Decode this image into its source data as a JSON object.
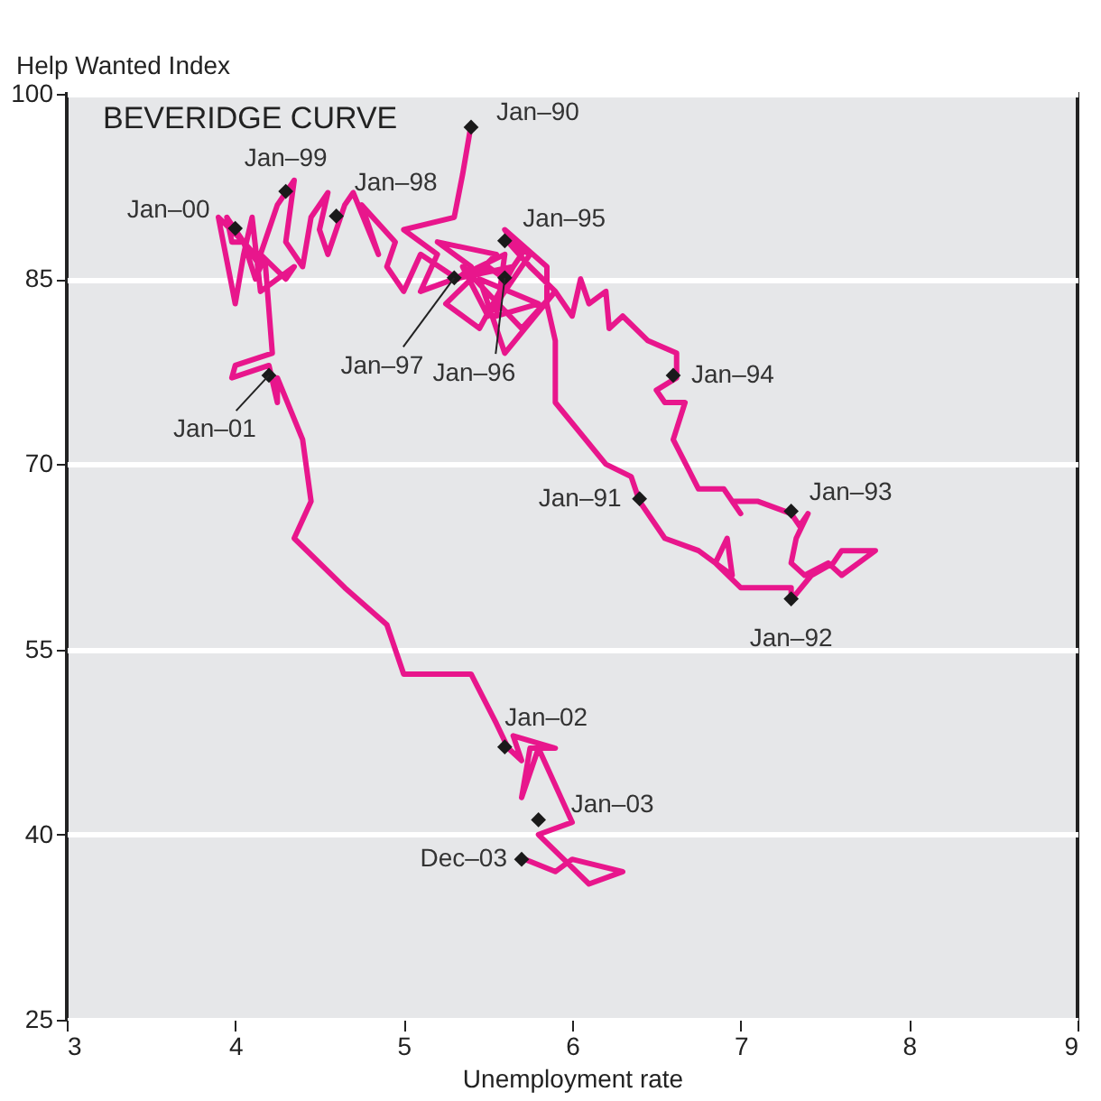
{
  "chart_data": {
    "type": "line",
    "title": "BEVERIDGE CURVE",
    "ylabel": "Help Wanted Index",
    "xlabel": "Unemployment rate",
    "xlim": [
      3,
      9
    ],
    "xticks": [
      3,
      4,
      5,
      6,
      7,
      8,
      9
    ],
    "ylim": [
      25,
      100
    ],
    "yticks": [
      25,
      40,
      55,
      70,
      85,
      100
    ],
    "grid": "y",
    "legend": false,
    "series": [
      {
        "type": "line",
        "color": "#e8168c",
        "marker": "none",
        "x": [
          5.4,
          5.35,
          5.3,
          5.0,
          5.2,
          5.1,
          5.5,
          5.6,
          5.7,
          5.6,
          5.85,
          5.85,
          5.9,
          5.9,
          6.2,
          6.35,
          6.4,
          6.55,
          6.75,
          6.85,
          6.95,
          6.92,
          6.85,
          7.0,
          7.0,
          7.3,
          7.3,
          7.42,
          7.55,
          7.6,
          7.72,
          7.8,
          7.6,
          7.52,
          7.38,
          7.3,
          7.33,
          7.4,
          7.35,
          7.3,
          7.1,
          6.95,
          7.0,
          6.9,
          6.75,
          6.6,
          6.67,
          6.55,
          6.5,
          6.62,
          6.62,
          6.45,
          6.3,
          6.22,
          6.2,
          6.1,
          6.05,
          6.0,
          5.9,
          5.75,
          5.62,
          5.75,
          5.5,
          5.35,
          5.7,
          5.9,
          5.6,
          5.45,
          5.8,
          5.55,
          5.6,
          5.3,
          5.65,
          5.45,
          5.25,
          5.55,
          5.2,
          5.4,
          5.32,
          5.1,
          5.0,
          4.9,
          4.95,
          4.75,
          4.85,
          4.7,
          4.65,
          4.55,
          4.5,
          4.55,
          4.45,
          4.4,
          4.3,
          4.35,
          4.25,
          4.2,
          4.15,
          4.3,
          4.35,
          4.15,
          4.1,
          4.05,
          4.0,
          3.9,
          4.05,
          4.12,
          4.15,
          4.0,
          3.95,
          3.98,
          4.05,
          4.18,
          4.22,
          4.0,
          3.98,
          4.2,
          4.25,
          4.25,
          4.4,
          4.45,
          4.35,
          4.65,
          4.9,
          5.0,
          5.4,
          5.55,
          5.62,
          5.7,
          5.65,
          5.9,
          5.75,
          5.7,
          5.8,
          6.0,
          5.8,
          5.95,
          6.1,
          6.3,
          6.0,
          5.9,
          5.72
        ],
        "values": [
          97.5,
          93.5,
          90,
          89,
          87,
          84,
          86,
          85,
          87,
          89,
          86,
          83,
          80,
          75,
          70,
          69,
          67,
          64,
          63,
          62,
          61,
          64,
          62,
          60,
          60,
          60,
          59,
          61,
          62,
          63,
          63,
          63,
          61,
          62,
          61,
          62,
          64,
          66,
          65,
          66,
          67,
          67,
          66,
          68,
          68,
          72,
          75,
          75,
          76,
          77,
          79,
          80,
          82,
          81,
          84,
          83,
          85,
          82,
          84,
          86,
          88,
          87,
          82,
          86,
          81,
          84,
          79,
          85,
          83,
          82,
          87,
          85,
          86,
          81,
          83,
          87,
          88,
          86,
          85,
          87,
          84,
          86,
          88,
          91,
          87,
          92,
          91,
          87,
          89,
          92,
          90,
          86,
          88,
          93,
          91,
          89,
          87,
          85,
          86,
          84,
          90,
          87,
          83,
          90,
          88,
          85,
          86,
          89,
          90,
          88,
          88,
          86,
          79,
          78,
          77,
          78,
          75,
          77,
          72,
          67,
          64,
          60,
          57,
          53,
          53,
          49,
          47,
          46,
          48,
          47,
          47,
          43,
          47,
          41,
          40,
          38,
          36,
          37,
          38,
          37,
          38
        ]
      },
      {
        "type": "scatter",
        "color": "#1a1a1a",
        "marker": "diamond",
        "x": [
          5.4,
          6.4,
          7.3,
          7.3,
          6.6,
          5.6,
          5.6,
          5.3,
          4.6,
          4.3,
          4.0,
          4.2,
          5.6,
          5.8,
          5.7
        ],
        "values": [
          97.3,
          67.2,
          59.1,
          66.2,
          77.2,
          88.1,
          85.1,
          85.1,
          90.1,
          92.1,
          89.1,
          77.2,
          47.1,
          41.2,
          38.0
        ]
      }
    ],
    "annotations": [
      {
        "text": "Jan–90",
        "x": 5.4,
        "y": 97.3
      },
      {
        "text": "Jan–91",
        "x": 6.4,
        "y": 67.2
      },
      {
        "text": "Jan–92",
        "x": 7.3,
        "y": 59.1
      },
      {
        "text": "Jan–93",
        "x": 7.3,
        "y": 66.2
      },
      {
        "text": "Jan–94",
        "x": 6.6,
        "y": 77.2
      },
      {
        "text": "Jan–95",
        "x": 5.6,
        "y": 88.1
      },
      {
        "text": "Jan–96",
        "x": 5.6,
        "y": 85.1
      },
      {
        "text": "Jan–97",
        "x": 5.3,
        "y": 85.1
      },
      {
        "text": "Jan–98",
        "x": 4.6,
        "y": 90.1
      },
      {
        "text": "Jan–99",
        "x": 4.3,
        "y": 92.1
      },
      {
        "text": "Jan–00",
        "x": 4.0,
        "y": 89.1
      },
      {
        "text": "Jan–01",
        "x": 4.2,
        "y": 77.2
      },
      {
        "text": "Jan–02",
        "x": 5.6,
        "y": 47.1
      },
      {
        "text": "Jan–03",
        "x": 5.8,
        "y": 41.2
      },
      {
        "text": "Dec–03",
        "x": 5.7,
        "y": 38.0
      }
    ]
  }
}
